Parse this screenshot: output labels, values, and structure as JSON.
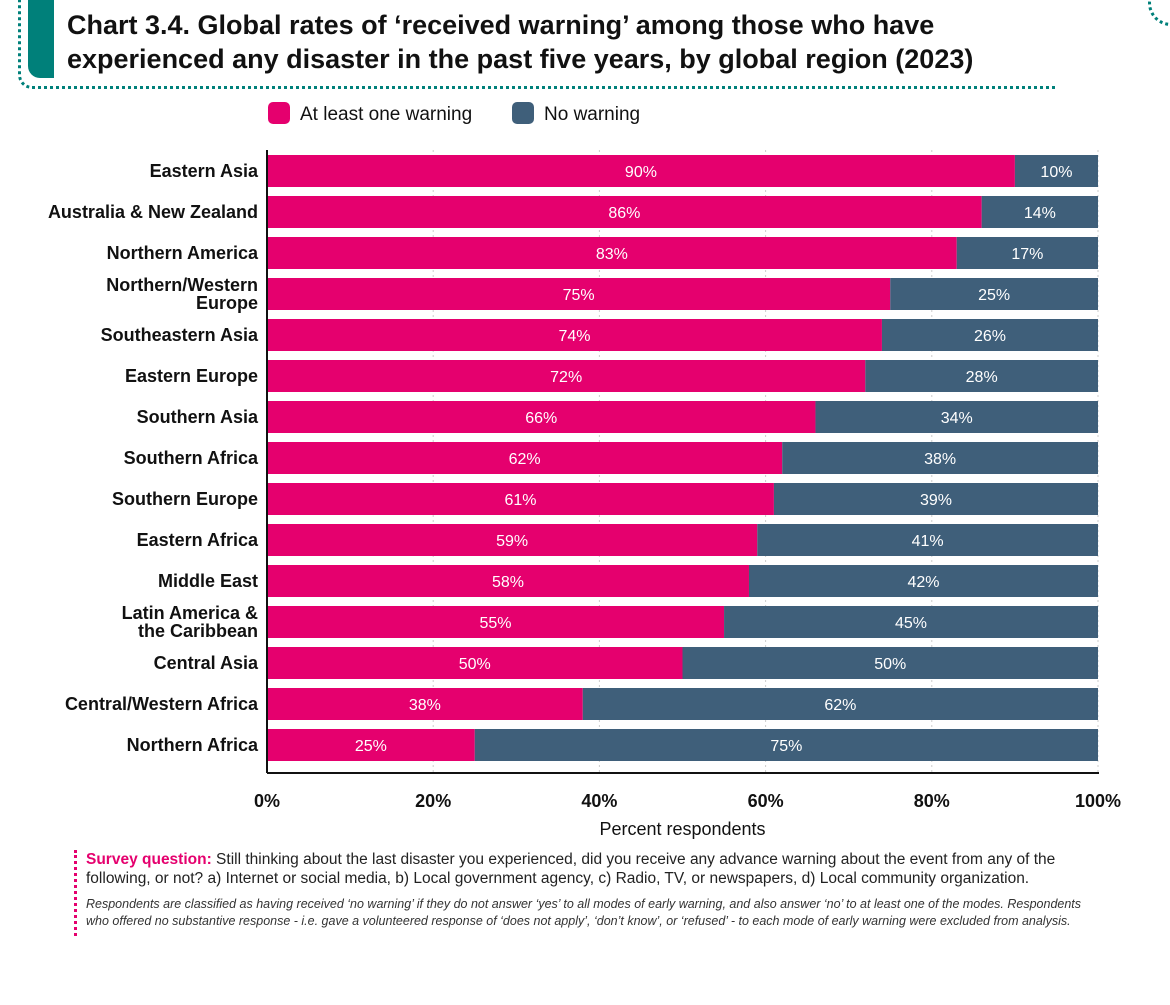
{
  "title": "Chart 3.4. Global rates of ‘received warning’ among those who have experienced any disaster in the past five years, by global region (2023)",
  "colors": {
    "accent": "#00807a",
    "warning": "#e5006e",
    "no_warning": "#3f5f7a"
  },
  "chart_data": {
    "type": "bar",
    "orientation": "horizontal",
    "stacked": true,
    "title": "Chart 3.4. Global rates of ‘received warning’ among those who have experienced any disaster in the past five years, by global region (2023)",
    "xlabel": "Percent respondents",
    "ylabel": "",
    "xlim": [
      0,
      100
    ],
    "xticks": [
      "0%",
      "20%",
      "40%",
      "60%",
      "80%",
      "100%"
    ],
    "grid": true,
    "legend_position": "top",
    "categories": [
      "Eastern Asia",
      "Australia & New Zealand",
      "Northern America",
      "Northern/Western Europe",
      "Southeastern Asia",
      "Eastern Europe",
      "Southern Asia",
      "Southern Africa",
      "Southern Europe",
      "Eastern Africa",
      "Middle East",
      "Latin America & the Caribbean",
      "Central Asia",
      "Central/Western Africa",
      "Northern Africa"
    ],
    "category_lines": [
      [
        "Eastern Asia"
      ],
      [
        "Australia & New Zealand"
      ],
      [
        "Northern America"
      ],
      [
        "Northern/Western",
        "Europe"
      ],
      [
        "Southeastern Asia"
      ],
      [
        "Eastern Europe"
      ],
      [
        "Southern Asia"
      ],
      [
        "Southern Africa"
      ],
      [
        "Southern Europe"
      ],
      [
        "Eastern Africa"
      ],
      [
        "Middle East"
      ],
      [
        "Latin America &",
        "the Caribbean"
      ],
      [
        "Central Asia"
      ],
      [
        "Central/Western Africa"
      ],
      [
        "Northern Africa"
      ]
    ],
    "series": [
      {
        "name": "At least one warning",
        "color": "#e5006e",
        "values": [
          90,
          86,
          83,
          75,
          74,
          72,
          66,
          62,
          61,
          59,
          58,
          55,
          50,
          38,
          25
        ],
        "labels": [
          "90%",
          "86%",
          "83%",
          "75%",
          "74%",
          "72%",
          "66%",
          "62%",
          "61%",
          "59%",
          "58%",
          "55%",
          "50%",
          "38%",
          "25%"
        ]
      },
      {
        "name": "No warning",
        "color": "#3f5f7a",
        "values": [
          10,
          14,
          17,
          25,
          26,
          28,
          34,
          38,
          39,
          41,
          42,
          45,
          50,
          62,
          75
        ],
        "labels": [
          "10%",
          "14%",
          "17%",
          "25%",
          "26%",
          "28%",
          "34%",
          "38%",
          "39%",
          "41%",
          "42%",
          "45%",
          "50%",
          "62%",
          "75%"
        ]
      }
    ]
  },
  "notes": {
    "survey_label": "Survey question:",
    "survey_text": " Still thinking about the last disaster you experienced, did you receive any advance warning about the event from any of the following, or not? a) Internet or social media, b) Local government agency, c) Radio, TV, or newspapers, d) Local community organization.",
    "footnote": "Respondents are classified as having received ‘no warning’ if they do not answer ‘yes’ to all modes of early warning, and also answer ‘no’ to at least one of the modes. Respondents who offered no substantive response - i.e. gave a volunteered response of ‘does not apply’, ‘don’t know’, or ‘refused’ - to each mode of early warning were excluded from analysis."
  }
}
